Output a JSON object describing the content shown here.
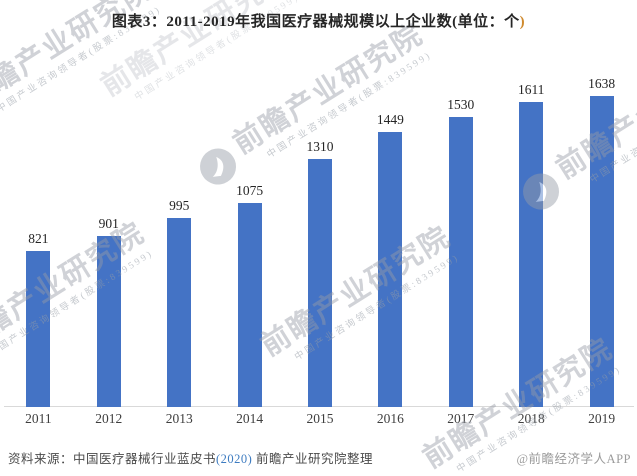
{
  "header": {
    "title_main": "图表3：2011-2019年我国医疗器械规模以上企业数(单位：个",
    "title_close_paren": ")"
  },
  "chart_data": {
    "type": "bar",
    "title": "图表3：2011-2019年我国医疗器械规模以上企业数(单位：个)",
    "unit": "个",
    "categories": [
      "2011",
      "2012",
      "2013",
      "2014",
      "2015",
      "2016",
      "2017",
      "2018",
      "2019"
    ],
    "values": [
      821,
      901,
      995,
      1075,
      1310,
      1449,
      1530,
      1611,
      1638
    ],
    "xlabel": "",
    "ylabel": "",
    "ylim": [
      0,
      1830
    ],
    "grid": false,
    "legend": "none",
    "bar_color": "#4473c5",
    "value_labels": true
  },
  "footer": {
    "source_prefix": "资料来源：中国医疗器械行业蓝皮书",
    "source_year": "(2020)",
    "source_suffix": " 前瞻产业研究院整理",
    "credit": "@前瞻经济学人APP"
  },
  "watermark": {
    "brand": "前瞻产业研究院",
    "tagline": "中国产业咨询领导者(股票:839599)"
  },
  "colors": {
    "bar": "#4473c5",
    "title_text": "#262626",
    "title_paren": "#cf8a2e",
    "value_label": "#262626",
    "axis_label": "#3f3f3f",
    "axis_line": "#d9d9d9",
    "source_text": "#4a4a4a",
    "source_year": "#3e7cc1",
    "credit_text": "#9b9b9b",
    "watermark_gray": "#b4b9c2"
  }
}
